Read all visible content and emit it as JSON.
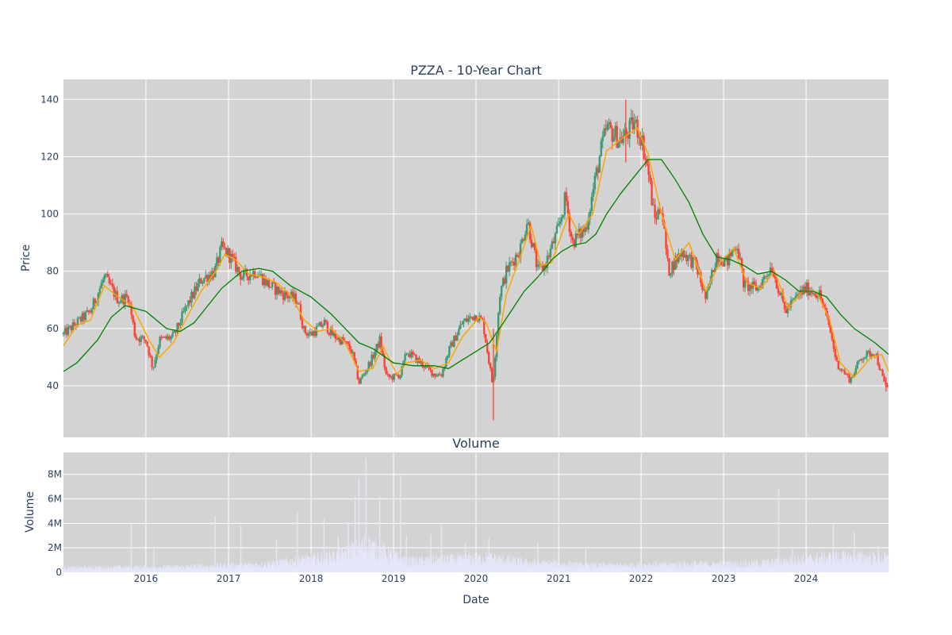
{
  "chart_data": [
    {
      "type": "candlestick",
      "title": "PZZA - 10-Year Chart",
      "ylabel": "Price",
      "xlabel": "",
      "x_range": [
        "2015-01-01",
        "2024-12-31"
      ],
      "ylim": [
        22,
        147
      ],
      "yticks": [
        40,
        60,
        80,
        100,
        120,
        140
      ],
      "xticks": [
        "2016",
        "2017",
        "2018",
        "2019",
        "2020",
        "2021",
        "2022",
        "2023",
        "2024"
      ],
      "grid": true,
      "colors": {
        "up": "#3d9970",
        "down": "#ff4136",
        "ma_short": "#ffa500",
        "ma_long": "#008000",
        "plot_bg": "#d3d3d3"
      },
      "close_path": [
        [
          "2015-01-01",
          58
        ],
        [
          "2015-03-01",
          62
        ],
        [
          "2015-05-01",
          66
        ],
        [
          "2015-07-01",
          78
        ],
        [
          "2015-09-01",
          70
        ],
        [
          "2015-10-15",
          71
        ],
        [
          "2015-11-15",
          57
        ],
        [
          "2016-01-01",
          56
        ],
        [
          "2016-02-01",
          46
        ],
        [
          "2016-03-01",
          56
        ],
        [
          "2016-05-01",
          57
        ],
        [
          "2016-07-01",
          68
        ],
        [
          "2016-09-01",
          77
        ],
        [
          "2016-11-01",
          80
        ],
        [
          "2016-12-01",
          88
        ],
        [
          "2017-01-01",
          86
        ],
        [
          "2017-03-01",
          78
        ],
        [
          "2017-05-01",
          80
        ],
        [
          "2017-07-01",
          75
        ],
        [
          "2017-09-01",
          72
        ],
        [
          "2017-11-01",
          70
        ],
        [
          "2017-12-01",
          59
        ],
        [
          "2018-01-01",
          58
        ],
        [
          "2018-03-01",
          62
        ],
        [
          "2018-04-01",
          58
        ],
        [
          "2018-06-01",
          55
        ],
        [
          "2018-07-01",
          52
        ],
        [
          "2018-08-01",
          41
        ],
        [
          "2018-10-01",
          50
        ],
        [
          "2018-11-01",
          56
        ],
        [
          "2018-12-01",
          43
        ],
        [
          "2019-01-01",
          43
        ],
        [
          "2019-02-01",
          44
        ],
        [
          "2019-03-01",
          52
        ],
        [
          "2019-05-01",
          48
        ],
        [
          "2019-07-01",
          44
        ],
        [
          "2019-08-01",
          44
        ],
        [
          "2019-09-01",
          52
        ],
        [
          "2019-11-01",
          62
        ],
        [
          "2020-01-01",
          65
        ],
        [
          "2020-02-01",
          62
        ],
        [
          "2020-03-15",
          40
        ],
        [
          "2020-04-15",
          72
        ],
        [
          "2020-05-15",
          80
        ],
        [
          "2020-07-15",
          88
        ],
        [
          "2020-08-15",
          98
        ],
        [
          "2020-10-01",
          80
        ],
        [
          "2020-11-01",
          82
        ],
        [
          "2021-01-01",
          95
        ],
        [
          "2021-02-01",
          106
        ],
        [
          "2021-03-01",
          90
        ],
        [
          "2021-05-01",
          95
        ],
        [
          "2021-07-01",
          120
        ],
        [
          "2021-08-01",
          130
        ],
        [
          "2021-10-01",
          126
        ],
        [
          "2021-11-01",
          128
        ],
        [
          "2021-12-01",
          132
        ],
        [
          "2022-01-01",
          127
        ],
        [
          "2022-02-01",
          115
        ],
        [
          "2022-03-01",
          98
        ],
        [
          "2022-04-01",
          103
        ],
        [
          "2022-05-01",
          80
        ],
        [
          "2022-07-01",
          87
        ],
        [
          "2022-09-01",
          82
        ],
        [
          "2022-10-15",
          70
        ],
        [
          "2022-12-01",
          86
        ],
        [
          "2023-01-15",
          83
        ],
        [
          "2023-03-01",
          90
        ],
        [
          "2023-04-01",
          75
        ],
        [
          "2023-06-01",
          74
        ],
        [
          "2023-08-01",
          82
        ],
        [
          "2023-10-01",
          66
        ],
        [
          "2023-12-01",
          72
        ],
        [
          "2024-01-01",
          74
        ],
        [
          "2024-03-01",
          72
        ],
        [
          "2024-04-15",
          60
        ],
        [
          "2024-05-15",
          48
        ],
        [
          "2024-07-15",
          42
        ],
        [
          "2024-09-01",
          50
        ],
        [
          "2024-11-01",
          52
        ],
        [
          "2024-12-15",
          40
        ]
      ],
      "ma_short": [
        [
          "2015-01-01",
          54
        ],
        [
          "2015-03-01",
          61
        ],
        [
          "2015-05-01",
          63
        ],
        [
          "2015-07-01",
          75
        ],
        [
          "2015-09-01",
          71
        ],
        [
          "2015-11-01",
          68
        ],
        [
          "2016-01-15",
          56
        ],
        [
          "2016-03-01",
          50
        ],
        [
          "2016-05-01",
          55
        ],
        [
          "2016-07-01",
          64
        ],
        [
          "2016-09-01",
          73
        ],
        [
          "2016-11-15",
          81
        ],
        [
          "2016-12-15",
          86
        ],
        [
          "2017-02-01",
          84
        ],
        [
          "2017-04-01",
          79
        ],
        [
          "2017-06-01",
          78
        ],
        [
          "2017-08-01",
          76
        ],
        [
          "2017-10-01",
          72
        ],
        [
          "2017-12-01",
          63
        ],
        [
          "2018-02-01",
          59
        ],
        [
          "2018-04-01",
          60
        ],
        [
          "2018-06-01",
          55
        ],
        [
          "2018-08-01",
          45
        ],
        [
          "2018-10-01",
          46
        ],
        [
          "2018-11-15",
          54
        ],
        [
          "2019-01-15",
          44
        ],
        [
          "2019-03-01",
          48
        ],
        [
          "2019-05-01",
          49
        ],
        [
          "2019-07-01",
          46
        ],
        [
          "2019-09-01",
          48
        ],
        [
          "2019-11-01",
          57
        ],
        [
          "2020-01-15",
          64
        ],
        [
          "2020-02-15",
          62
        ],
        [
          "2020-04-01",
          52
        ],
        [
          "2020-05-15",
          72
        ],
        [
          "2020-07-15",
          85
        ],
        [
          "2020-09-01",
          96
        ],
        [
          "2020-10-15",
          82
        ],
        [
          "2020-12-01",
          83
        ],
        [
          "2021-02-15",
          100
        ],
        [
          "2021-04-01",
          93
        ],
        [
          "2021-06-01",
          100
        ],
        [
          "2021-08-01",
          122
        ],
        [
          "2021-10-01",
          126
        ],
        [
          "2021-12-15",
          130
        ],
        [
          "2022-02-01",
          121
        ],
        [
          "2022-04-01",
          100
        ],
        [
          "2022-06-01",
          84
        ],
        [
          "2022-08-01",
          90
        ],
        [
          "2022-10-15",
          73
        ],
        [
          "2022-12-15",
          83
        ],
        [
          "2023-02-15",
          88
        ],
        [
          "2023-04-15",
          76
        ],
        [
          "2023-06-15",
          74
        ],
        [
          "2023-08-15",
          80
        ],
        [
          "2023-10-15",
          67
        ],
        [
          "2023-12-15",
          73
        ],
        [
          "2024-02-15",
          73
        ],
        [
          "2024-04-15",
          63
        ],
        [
          "2024-06-01",
          48
        ],
        [
          "2024-08-01",
          43
        ],
        [
          "2024-10-15",
          50
        ],
        [
          "2024-12-01",
          51
        ],
        [
          "2024-12-31",
          45
        ]
      ],
      "ma_long": [
        [
          "2015-01-01",
          45
        ],
        [
          "2015-03-01",
          48
        ],
        [
          "2015-06-01",
          56
        ],
        [
          "2015-08-01",
          64
        ],
        [
          "2015-10-01",
          68
        ],
        [
          "2016-01-01",
          66
        ],
        [
          "2016-04-01",
          60
        ],
        [
          "2016-06-01",
          59
        ],
        [
          "2016-08-01",
          62
        ],
        [
          "2016-10-01",
          68
        ],
        [
          "2016-12-01",
          74
        ],
        [
          "2017-03-01",
          80
        ],
        [
          "2017-05-15",
          81
        ],
        [
          "2017-07-15",
          80
        ],
        [
          "2017-10-01",
          75
        ],
        [
          "2018-01-01",
          71
        ],
        [
          "2018-04-01",
          65
        ],
        [
          "2018-06-01",
          60
        ],
        [
          "2018-08-01",
          55
        ],
        [
          "2018-10-01",
          53
        ],
        [
          "2019-01-01",
          48
        ],
        [
          "2019-04-01",
          47
        ],
        [
          "2019-07-01",
          47
        ],
        [
          "2019-09-01",
          46
        ],
        [
          "2019-11-01",
          49
        ],
        [
          "2020-01-01",
          52
        ],
        [
          "2020-03-01",
          55
        ],
        [
          "2020-05-01",
          62
        ],
        [
          "2020-08-01",
          73
        ],
        [
          "2020-10-01",
          78
        ],
        [
          "2020-12-01",
          84
        ],
        [
          "2021-01-15",
          87
        ],
        [
          "2021-03-01",
          89
        ],
        [
          "2021-05-01",
          90
        ],
        [
          "2021-06-15",
          93
        ],
        [
          "2021-08-01",
          100
        ],
        [
          "2021-10-01",
          107
        ],
        [
          "2021-12-01",
          113
        ],
        [
          "2022-02-01",
          119
        ],
        [
          "2022-04-01",
          119
        ],
        [
          "2022-06-01",
          112
        ],
        [
          "2022-08-01",
          104
        ],
        [
          "2022-10-01",
          93
        ],
        [
          "2022-12-01",
          85
        ],
        [
          "2023-02-01",
          84
        ],
        [
          "2023-04-01",
          82
        ],
        [
          "2023-06-01",
          79
        ],
        [
          "2023-08-01",
          80
        ],
        [
          "2023-10-01",
          77
        ],
        [
          "2023-12-01",
          73
        ],
        [
          "2024-02-01",
          73
        ],
        [
          "2024-04-01",
          71
        ],
        [
          "2024-06-01",
          65
        ],
        [
          "2024-08-01",
          60
        ],
        [
          "2024-11-01",
          55
        ],
        [
          "2024-12-31",
          51
        ]
      ]
    },
    {
      "type": "bar",
      "title": "Volume",
      "ylabel": "Volume",
      "xlabel": "Date",
      "ylim": [
        0,
        9800000
      ],
      "yticks": [
        0,
        2000000,
        4000000,
        6000000,
        8000000
      ],
      "ytick_labels": [
        "0",
        "2M",
        "4M",
        "6M",
        "8M"
      ],
      "xticks": [
        "2016",
        "2017",
        "2018",
        "2019",
        "2020",
        "2021",
        "2022",
        "2023",
        "2024"
      ],
      "bar_color": "#e6e6fa",
      "baseline_profile": [
        [
          "2015-01-01",
          400000
        ],
        [
          "2016-06-01",
          500000
        ],
        [
          "2017-06-01",
          700000
        ],
        [
          "2018-05-01",
          1500000
        ],
        [
          "2018-09-01",
          2500000
        ],
        [
          "2019-03-01",
          1000000
        ],
        [
          "2020-03-01",
          1300000
        ],
        [
          "2020-08-01",
          900000
        ],
        [
          "2021-06-01",
          600000
        ],
        [
          "2022-06-01",
          700000
        ],
        [
          "2023-06-01",
          800000
        ],
        [
          "2024-05-01",
          1400000
        ],
        [
          "2024-12-31",
          1300000
        ]
      ],
      "spikes": [
        [
          "2015-10-28",
          3900000
        ],
        [
          "2016-02-05",
          1900000
        ],
        [
          "2016-11-02",
          4600000
        ],
        [
          "2017-02-24",
          3800000
        ],
        [
          "2017-08-01",
          2700000
        ],
        [
          "2017-11-01",
          4900000
        ],
        [
          "2018-02-27",
          4400000
        ],
        [
          "2018-05-01",
          3000000
        ],
        [
          "2018-06-15",
          4100000
        ],
        [
          "2018-07-15",
          6200000
        ],
        [
          "2018-08-01",
          7700000
        ],
        [
          "2018-09-01",
          9300000
        ],
        [
          "2018-11-01",
          6200000
        ],
        [
          "2019-02-01",
          7900000
        ],
        [
          "2019-02-27",
          3000000
        ],
        [
          "2019-06-15",
          3100000
        ],
        [
          "2019-08-01",
          4000000
        ],
        [
          "2019-11-15",
          2500000
        ],
        [
          "2020-02-27",
          2800000
        ],
        [
          "2020-10-01",
          2400000
        ],
        [
          "2021-05-01",
          2100000
        ],
        [
          "2023-09-01",
          6900000
        ],
        [
          "2023-11-01",
          1900000
        ],
        [
          "2024-05-01",
          3900000
        ],
        [
          "2024-08-01",
          3300000
        ],
        [
          "2024-11-15",
          2200000
        ]
      ]
    }
  ]
}
